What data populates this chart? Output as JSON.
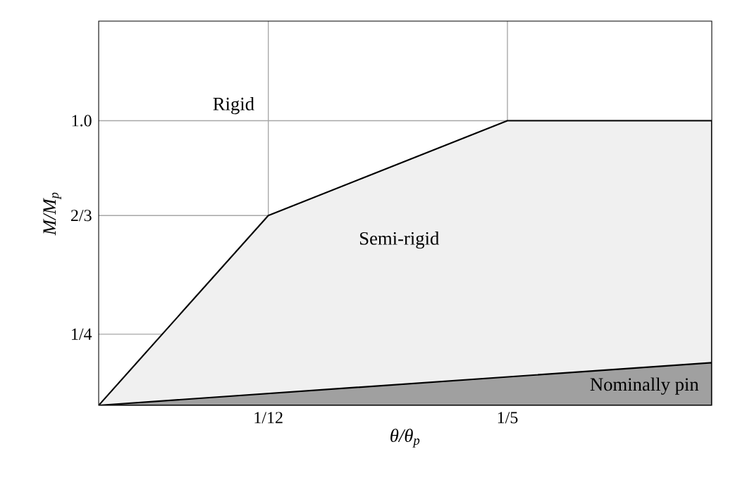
{
  "chart_data": {
    "type": "area",
    "xlabel": "θ/θ$_{p}$",
    "ylabel": "M/M$_{p}$",
    "xlim": [
      0,
      0.3
    ],
    "ylim": [
      0,
      1.35
    ],
    "xticks": [
      {
        "value": 0.083,
        "label": "1/12"
      },
      {
        "value": 0.2,
        "label": "1/5"
      }
    ],
    "yticks": [
      {
        "value": 0.25,
        "label": "1/4"
      },
      {
        "value": 0.667,
        "label": "2/3"
      },
      {
        "value": 1,
        "label": "1.0"
      }
    ],
    "grid": true,
    "series": [
      {
        "color": "#f0f0f0",
        "x": [
          0,
          0.083,
          0.2,
          0.3
        ],
        "values": [
          0,
          0.667,
          1,
          1
        ]
      },
      {
        "color": "#a0a0a0",
        "x": [
          0,
          0.3
        ],
        "values": [
          0,
          0.15
        ]
      }
    ],
    "annotations": [
      "Rigid",
      "Semi-rigid",
      "Nominally pin"
    ]
  }
}
